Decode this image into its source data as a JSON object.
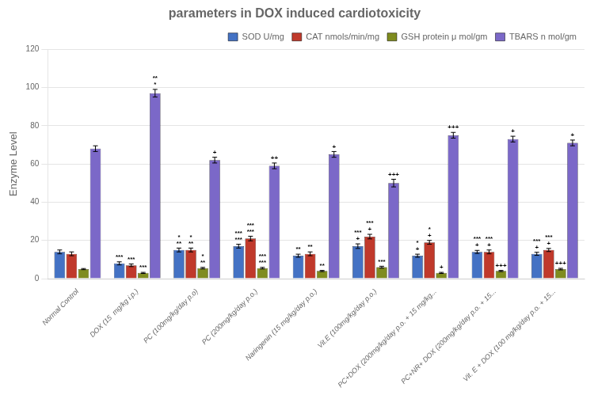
{
  "chart_data": {
    "type": "bar",
    "title": "parameters in DOX induced cardiotoxicity",
    "ylabel": "Enzyme Level",
    "categories": [
      "Normal Control",
      "DOX (15  mg/kg i.p.)",
      "PC (100mg/kg/day p.o)",
      "PC (200mg/kg/day p.o.)",
      "Naringenin (15 mg/kg/day p.o.)",
      "Vit.E (100mg/kg/day p.o.)",
      "PC+DOX (200mg/kg/day p.o. + 15 mg/kg...",
      "PC+NR+ DOX (200mg/kg/day p.o. + 15...",
      "Vit. E + DOX (100 mg/kg/day p.o. + 15..."
    ],
    "series": [
      {
        "name": "SOD U/mg",
        "color": "#4472C4",
        "values": [
          14,
          8,
          15,
          17,
          12,
          17,
          12,
          14,
          13
        ],
        "errors": [
          1.0,
          0.8,
          1.0,
          1.0,
          0.8,
          1.2,
          0.8,
          0.8,
          0.8
        ]
      },
      {
        "name": "CAT nmols/min/mg",
        "color": "#C0392B",
        "values": [
          13,
          7,
          15,
          21,
          13,
          22,
          19,
          14,
          15
        ],
        "errors": [
          1.0,
          0.7,
          1.0,
          1.2,
          1.0,
          1.2,
          1.0,
          1.0,
          0.8
        ]
      },
      {
        "name": "GSH protein μ mol/gm",
        "color": "#7F8C1F",
        "values": [
          5,
          3,
          5.5,
          5.5,
          4,
          6,
          3,
          4,
          5
        ],
        "errors": [
          0.3,
          0.3,
          0.4,
          0.4,
          0.3,
          0.5,
          0.3,
          0.3,
          0.4
        ]
      },
      {
        "name": "TBARS n mol/gm",
        "color": "#7B68C8",
        "values": [
          68,
          97,
          62,
          59,
          65,
          50,
          75,
          73,
          71
        ],
        "errors": [
          1.5,
          2.0,
          1.5,
          1.5,
          1.5,
          2.0,
          1.5,
          1.5,
          1.5
        ]
      }
    ],
    "ylim": [
      0,
      120
    ],
    "yticks": [
      0,
      20,
      40,
      60,
      80,
      100,
      120
    ],
    "grid": true,
    "legend": "upper right",
    "annotations": [
      {
        "category": "DOX (15  mg/kg i.p.)",
        "series": "SOD U/mg",
        "text": "***"
      },
      {
        "category": "DOX (15  mg/kg i.p.)",
        "series": "CAT nmols/min/mg",
        "text": "***"
      },
      {
        "category": "DOX (15  mg/kg i.p.)",
        "series": "GSH protein μ mol/gm",
        "text": "***"
      },
      {
        "category": "DOX (15  mg/kg i.p.)",
        "series": "TBARS n mol/gm",
        "text": "**\n*"
      },
      {
        "category": "PC (100mg/kg/day p.o)",
        "series": "SOD U/mg",
        "text": "*\n**"
      },
      {
        "category": "PC (100mg/kg/day p.o)",
        "series": "CAT nmols/min/mg",
        "text": "*\n**"
      },
      {
        "category": "PC (100mg/kg/day p.o)",
        "series": "GSH protein μ mol/gm",
        "text": "*\n**"
      },
      {
        "category": "PC (100mg/kg/day p.o)",
        "series": "TBARS n mol/gm",
        "text": "+"
      },
      {
        "category": "PC (200mg/kg/day p.o.)",
        "series": "SOD U/mg",
        "text": "***\n***"
      },
      {
        "category": "PC (200mg/kg/day p.o.)",
        "series": "CAT nmols/min/mg",
        "text": "***\n***"
      },
      {
        "category": "PC (200mg/kg/day p.o.)",
        "series": "GSH protein μ mol/gm",
        "text": "***\n***"
      },
      {
        "category": "PC (200mg/kg/day p.o.)",
        "series": "TBARS n mol/gm",
        "text": "++"
      },
      {
        "category": "Naringenin (15 mg/kg/day p.o.)",
        "series": "SOD U/mg",
        "text": "**"
      },
      {
        "category": "Naringenin (15 mg/kg/day p.o.)",
        "series": "CAT nmols/min/mg",
        "text": "**"
      },
      {
        "category": "Naringenin (15 mg/kg/day p.o.)",
        "series": "GSH protein μ mol/gm",
        "text": "**"
      },
      {
        "category": "Naringenin (15 mg/kg/day p.o.)",
        "series": "TBARS n mol/gm",
        "text": "+"
      },
      {
        "category": "Vit.E (100mg/kg/day p.o.)",
        "series": "SOD U/mg",
        "text": "***\n+"
      },
      {
        "category": "Vit.E (100mg/kg/day p.o.)",
        "series": "CAT nmols/min/mg",
        "text": "***\n+"
      },
      {
        "category": "Vit.E (100mg/kg/day p.o.)",
        "series": "GSH protein μ mol/gm",
        "text": "***"
      },
      {
        "category": "Vit.E (100mg/kg/day p.o.)",
        "series": "TBARS n mol/gm",
        "text": "+++"
      },
      {
        "category": "PC+DOX (200mg/kg/day p.o. + 15 mg/kg...",
        "series": "SOD U/mg",
        "text": "*\n+"
      },
      {
        "category": "PC+DOX (200mg/kg/day p.o. + 15 mg/kg...",
        "series": "CAT nmols/min/mg",
        "text": "*\n+"
      },
      {
        "category": "PC+DOX (200mg/kg/day p.o. + 15 mg/kg...",
        "series": "GSH protein μ mol/gm",
        "text": "+"
      },
      {
        "category": "PC+DOX (200mg/kg/day p.o. + 15 mg/kg...",
        "series": "TBARS n mol/gm",
        "text": "+++"
      },
      {
        "category": "PC+NR+ DOX (200mg/kg/day p.o. + 15...",
        "series": "SOD U/mg",
        "text": "***\n+"
      },
      {
        "category": "PC+NR+ DOX (200mg/kg/day p.o. + 15...",
        "series": "CAT nmols/min/mg",
        "text": "***\n+"
      },
      {
        "category": "PC+NR+ DOX (200mg/kg/day p.o. + 15...",
        "series": "GSH protein μ mol/gm",
        "text": "+++"
      },
      {
        "category": "PC+NR+ DOX (200mg/kg/day p.o. + 15...",
        "series": "TBARS n mol/gm",
        "text": "+"
      },
      {
        "category": "Vit. E + DOX (100 mg/kg/day p.o. + 15...",
        "series": "SOD U/mg",
        "text": "***\n+"
      },
      {
        "category": "Vit. E + DOX (100 mg/kg/day p.o. + 15...",
        "series": "CAT nmols/min/mg",
        "text": "***\n+"
      },
      {
        "category": "Vit. E + DOX (100 mg/kg/day p.o. + 15...",
        "series": "GSH protein μ mol/gm",
        "text": "+++"
      },
      {
        "category": "Vit. E + DOX (100 mg/kg/day p.o. + 15...",
        "series": "TBARS n mol/gm",
        "text": "+"
      }
    ]
  }
}
